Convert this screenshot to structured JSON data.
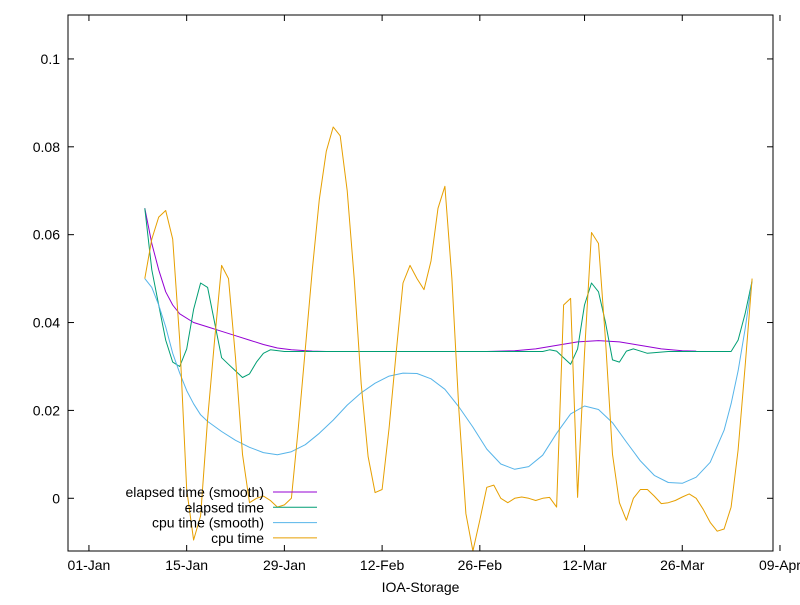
{
  "chart_data": {
    "type": "line",
    "title": "",
    "xlabel": "IOA-Storage",
    "ylabel": "",
    "x_type": "date",
    "xlim": [
      "2019-12-29",
      "2020-04-08"
    ],
    "ylim": [
      -0.012,
      0.11
    ],
    "grid": false,
    "legend_position": "bottom-left",
    "x_ticks": [
      {
        "date": "2020-01-01",
        "label": "01-Jan"
      },
      {
        "date": "2020-01-15",
        "label": "15-Jan"
      },
      {
        "date": "2020-01-29",
        "label": "29-Jan"
      },
      {
        "date": "2020-02-12",
        "label": "12-Feb"
      },
      {
        "date": "2020-02-26",
        "label": "26-Feb"
      },
      {
        "date": "2020-03-12",
        "label": "12-Mar"
      },
      {
        "date": "2020-03-26",
        "label": "26-Mar"
      },
      {
        "date": "2020-04-09",
        "label": "09-Apr"
      }
    ],
    "y_ticks": [
      {
        "value": 0,
        "label": "0"
      },
      {
        "value": 0.02,
        "label": "0.02"
      },
      {
        "value": 0.04,
        "label": "0.04"
      },
      {
        "value": 0.06,
        "label": "0.06"
      },
      {
        "value": 0.08,
        "label": "0.08"
      },
      {
        "value": 0.1,
        "label": "0.1"
      }
    ],
    "series": [
      {
        "name": "elapsed time (smooth)",
        "color": "#9400d3",
        "points": [
          [
            "2020-01-09",
            0.066
          ],
          [
            "2020-01-10",
            0.058
          ],
          [
            "2020-01-11",
            0.052
          ],
          [
            "2020-01-12",
            0.047
          ],
          [
            "2020-01-13",
            0.044
          ],
          [
            "2020-01-14",
            0.042
          ],
          [
            "2020-01-16",
            0.04
          ],
          [
            "2020-01-18",
            0.039
          ],
          [
            "2020-01-20",
            0.038
          ],
          [
            "2020-01-22",
            0.037
          ],
          [
            "2020-01-24",
            0.036
          ],
          [
            "2020-01-26",
            0.035
          ],
          [
            "2020-01-28",
            0.0342
          ],
          [
            "2020-01-30",
            0.0338
          ],
          [
            "2020-02-02",
            0.0335
          ],
          [
            "2020-02-04",
            0.0334
          ],
          [
            "2020-02-27",
            0.0334
          ],
          [
            "2020-03-02",
            0.0336
          ],
          [
            "2020-03-05",
            0.034
          ],
          [
            "2020-03-08",
            0.0348
          ],
          [
            "2020-03-11",
            0.0356
          ],
          [
            "2020-03-14",
            0.0359
          ],
          [
            "2020-03-17",
            0.0356
          ],
          [
            "2020-03-20",
            0.0348
          ],
          [
            "2020-03-23",
            0.034
          ],
          [
            "2020-03-26",
            0.0336
          ],
          [
            "2020-03-28",
            0.0335
          ]
        ]
      },
      {
        "name": "elapsed time",
        "color": "#009e73",
        "points": [
          [
            "2020-01-09",
            0.066
          ],
          [
            "2020-01-10",
            0.052
          ],
          [
            "2020-01-11",
            0.044
          ],
          [
            "2020-01-12",
            0.036
          ],
          [
            "2020-01-13",
            0.031
          ],
          [
            "2020-01-14",
            0.03
          ],
          [
            "2020-01-15",
            0.034
          ],
          [
            "2020-01-16",
            0.043
          ],
          [
            "2020-01-17",
            0.049
          ],
          [
            "2020-01-18",
            0.048
          ],
          [
            "2020-01-19",
            0.04
          ],
          [
            "2020-01-20",
            0.032
          ],
          [
            "2020-01-21",
            0.0305
          ],
          [
            "2020-01-22",
            0.029
          ],
          [
            "2020-01-23",
            0.0275
          ],
          [
            "2020-01-24",
            0.0283
          ],
          [
            "2020-01-25",
            0.031
          ],
          [
            "2020-01-26",
            0.033
          ],
          [
            "2020-01-27",
            0.0338
          ],
          [
            "2020-01-29",
            0.0334
          ],
          [
            "2020-03-06",
            0.0334
          ],
          [
            "2020-03-07",
            0.0338
          ],
          [
            "2020-03-08",
            0.0335
          ],
          [
            "2020-03-09",
            0.032
          ],
          [
            "2020-03-10",
            0.0305
          ],
          [
            "2020-03-11",
            0.034
          ],
          [
            "2020-03-12",
            0.044
          ],
          [
            "2020-03-13",
            0.049
          ],
          [
            "2020-03-14",
            0.047
          ],
          [
            "2020-03-15",
            0.04
          ],
          [
            "2020-03-16",
            0.0315
          ],
          [
            "2020-03-17",
            0.031
          ],
          [
            "2020-03-18",
            0.0335
          ],
          [
            "2020-03-19",
            0.034
          ],
          [
            "2020-03-21",
            0.033
          ],
          [
            "2020-03-24",
            0.0334
          ],
          [
            "2020-04-01",
            0.0334
          ],
          [
            "2020-04-02",
            0.0334
          ],
          [
            "2020-04-03",
            0.036
          ],
          [
            "2020-04-04",
            0.042
          ],
          [
            "2020-04-05",
            0.0495
          ]
        ]
      },
      {
        "name": "cpu time (smooth)",
        "color": "#56b4e9",
        "points": [
          [
            "2020-01-09",
            0.05
          ],
          [
            "2020-01-10",
            0.048
          ],
          [
            "2020-01-11",
            0.044
          ],
          [
            "2020-01-12",
            0.039
          ],
          [
            "2020-01-13",
            0.033
          ],
          [
            "2020-01-14",
            0.0285
          ],
          [
            "2020-01-15",
            0.0245
          ],
          [
            "2020-01-16",
            0.0215
          ],
          [
            "2020-01-17",
            0.019
          ],
          [
            "2020-01-18",
            0.0175
          ],
          [
            "2020-01-20",
            0.0152
          ],
          [
            "2020-01-22",
            0.0132
          ],
          [
            "2020-01-24",
            0.0116
          ],
          [
            "2020-01-26",
            0.0104
          ],
          [
            "2020-01-28",
            0.0099
          ],
          [
            "2020-01-30",
            0.0106
          ],
          [
            "2020-02-01",
            0.0122
          ],
          [
            "2020-02-03",
            0.0148
          ],
          [
            "2020-02-05",
            0.0178
          ],
          [
            "2020-02-07",
            0.0212
          ],
          [
            "2020-02-09",
            0.024
          ],
          [
            "2020-02-11",
            0.0262
          ],
          [
            "2020-02-13",
            0.0278
          ],
          [
            "2020-02-15",
            0.0285
          ],
          [
            "2020-02-17",
            0.0284
          ],
          [
            "2020-02-19",
            0.0272
          ],
          [
            "2020-02-21",
            0.0248
          ],
          [
            "2020-02-23",
            0.0208
          ],
          [
            "2020-02-25",
            0.0162
          ],
          [
            "2020-02-27",
            0.0112
          ],
          [
            "2020-02-29",
            0.0078
          ],
          [
            "2020-03-02",
            0.0066
          ],
          [
            "2020-03-04",
            0.0072
          ],
          [
            "2020-03-06",
            0.0098
          ],
          [
            "2020-03-08",
            0.0148
          ],
          [
            "2020-03-10",
            0.0192
          ],
          [
            "2020-03-12",
            0.021
          ],
          [
            "2020-03-14",
            0.0202
          ],
          [
            "2020-03-16",
            0.0172
          ],
          [
            "2020-03-18",
            0.0128
          ],
          [
            "2020-03-20",
            0.0085
          ],
          [
            "2020-03-22",
            0.0052
          ],
          [
            "2020-03-24",
            0.0036
          ],
          [
            "2020-03-26",
            0.0034
          ],
          [
            "2020-03-28",
            0.0048
          ],
          [
            "2020-03-30",
            0.0082
          ],
          [
            "2020-04-01",
            0.0155
          ],
          [
            "2020-04-02",
            0.0215
          ],
          [
            "2020-04-03",
            0.029
          ],
          [
            "2020-04-04",
            0.0385
          ],
          [
            "2020-04-05",
            0.0495
          ]
        ]
      },
      {
        "name": "cpu time",
        "color": "#e69f00",
        "points": [
          [
            "2020-01-09",
            0.05
          ],
          [
            "2020-01-10",
            0.059
          ],
          [
            "2020-01-11",
            0.064
          ],
          [
            "2020-01-12",
            0.0655
          ],
          [
            "2020-01-13",
            0.059
          ],
          [
            "2020-01-14",
            0.036
          ],
          [
            "2020-01-15",
            0.002
          ],
          [
            "2020-01-16",
            -0.0095
          ],
          [
            "2020-01-17",
            -0.004
          ],
          [
            "2020-01-18",
            0.018
          ],
          [
            "2020-01-19",
            0.036
          ],
          [
            "2020-01-20",
            0.053
          ],
          [
            "2020-01-21",
            0.05
          ],
          [
            "2020-01-22",
            0.032
          ],
          [
            "2020-01-23",
            0.01
          ],
          [
            "2020-01-24",
            -0.001
          ],
          [
            "2020-01-25",
            0.0
          ],
          [
            "2020-01-26",
            0.0005
          ],
          [
            "2020-01-27",
            -0.0005
          ],
          [
            "2020-01-28",
            -0.002
          ],
          [
            "2020-01-29",
            -0.0015
          ],
          [
            "2020-01-30",
            0.0
          ],
          [
            "2020-01-31",
            0.016
          ],
          [
            "2020-02-01",
            0.034
          ],
          [
            "2020-02-02",
            0.052
          ],
          [
            "2020-02-03",
            0.068
          ],
          [
            "2020-02-04",
            0.079
          ],
          [
            "2020-02-05",
            0.0845
          ],
          [
            "2020-02-06",
            0.0825
          ],
          [
            "2020-02-07",
            0.07
          ],
          [
            "2020-02-08",
            0.05
          ],
          [
            "2020-02-09",
            0.026
          ],
          [
            "2020-02-10",
            0.0095
          ],
          [
            "2020-02-11",
            0.0013
          ],
          [
            "2020-02-12",
            0.002
          ],
          [
            "2020-02-13",
            0.016
          ],
          [
            "2020-02-14",
            0.033
          ],
          [
            "2020-02-15",
            0.049
          ],
          [
            "2020-02-16",
            0.053
          ],
          [
            "2020-02-17",
            0.05
          ],
          [
            "2020-02-18",
            0.0475
          ],
          [
            "2020-02-19",
            0.054
          ],
          [
            "2020-02-20",
            0.066
          ],
          [
            "2020-02-21",
            0.071
          ],
          [
            "2020-02-22",
            0.05
          ],
          [
            "2020-02-23",
            0.02
          ],
          [
            "2020-02-24",
            -0.0035
          ],
          [
            "2020-02-25",
            -0.012
          ],
          [
            "2020-02-26",
            -0.005
          ],
          [
            "2020-02-27",
            0.0025
          ],
          [
            "2020-02-28",
            0.003
          ],
          [
            "2020-02-29",
            0.0
          ],
          [
            "2020-03-01",
            -0.001
          ],
          [
            "2020-03-02",
            0.0
          ],
          [
            "2020-03-03",
            0.0003
          ],
          [
            "2020-03-04",
            0.0
          ],
          [
            "2020-03-05",
            -0.0005
          ],
          [
            "2020-03-06",
            0.0
          ],
          [
            "2020-03-07",
            0.0002
          ],
          [
            "2020-03-08",
            -0.002
          ],
          [
            "2020-03-09",
            0.044
          ],
          [
            "2020-03-10",
            0.0455
          ],
          [
            "2020-03-11",
            0.0002
          ],
          [
            "2020-03-12",
            0.033
          ],
          [
            "2020-03-13",
            0.0605
          ],
          [
            "2020-03-14",
            0.058
          ],
          [
            "2020-03-15",
            0.036
          ],
          [
            "2020-03-16",
            0.01
          ],
          [
            "2020-03-17",
            -0.001
          ],
          [
            "2020-03-18",
            -0.005
          ],
          [
            "2020-03-19",
            0.0
          ],
          [
            "2020-03-20",
            0.002
          ],
          [
            "2020-03-21",
            0.002
          ],
          [
            "2020-03-22",
            0.0005
          ],
          [
            "2020-03-23",
            -0.0012
          ],
          [
            "2020-03-24",
            -0.001
          ],
          [
            "2020-03-25",
            -0.0005
          ],
          [
            "2020-03-26",
            0.0003
          ],
          [
            "2020-03-27",
            0.001
          ],
          [
            "2020-03-28",
            0.0
          ],
          [
            "2020-03-29",
            -0.0025
          ],
          [
            "2020-03-30",
            -0.0055
          ],
          [
            "2020-03-31",
            -0.0075
          ],
          [
            "2020-04-01",
            -0.007
          ],
          [
            "2020-04-02",
            -0.002
          ],
          [
            "2020-04-03",
            0.011
          ],
          [
            "2020-04-04",
            0.03
          ],
          [
            "2020-04-05",
            0.05
          ]
        ]
      }
    ]
  }
}
